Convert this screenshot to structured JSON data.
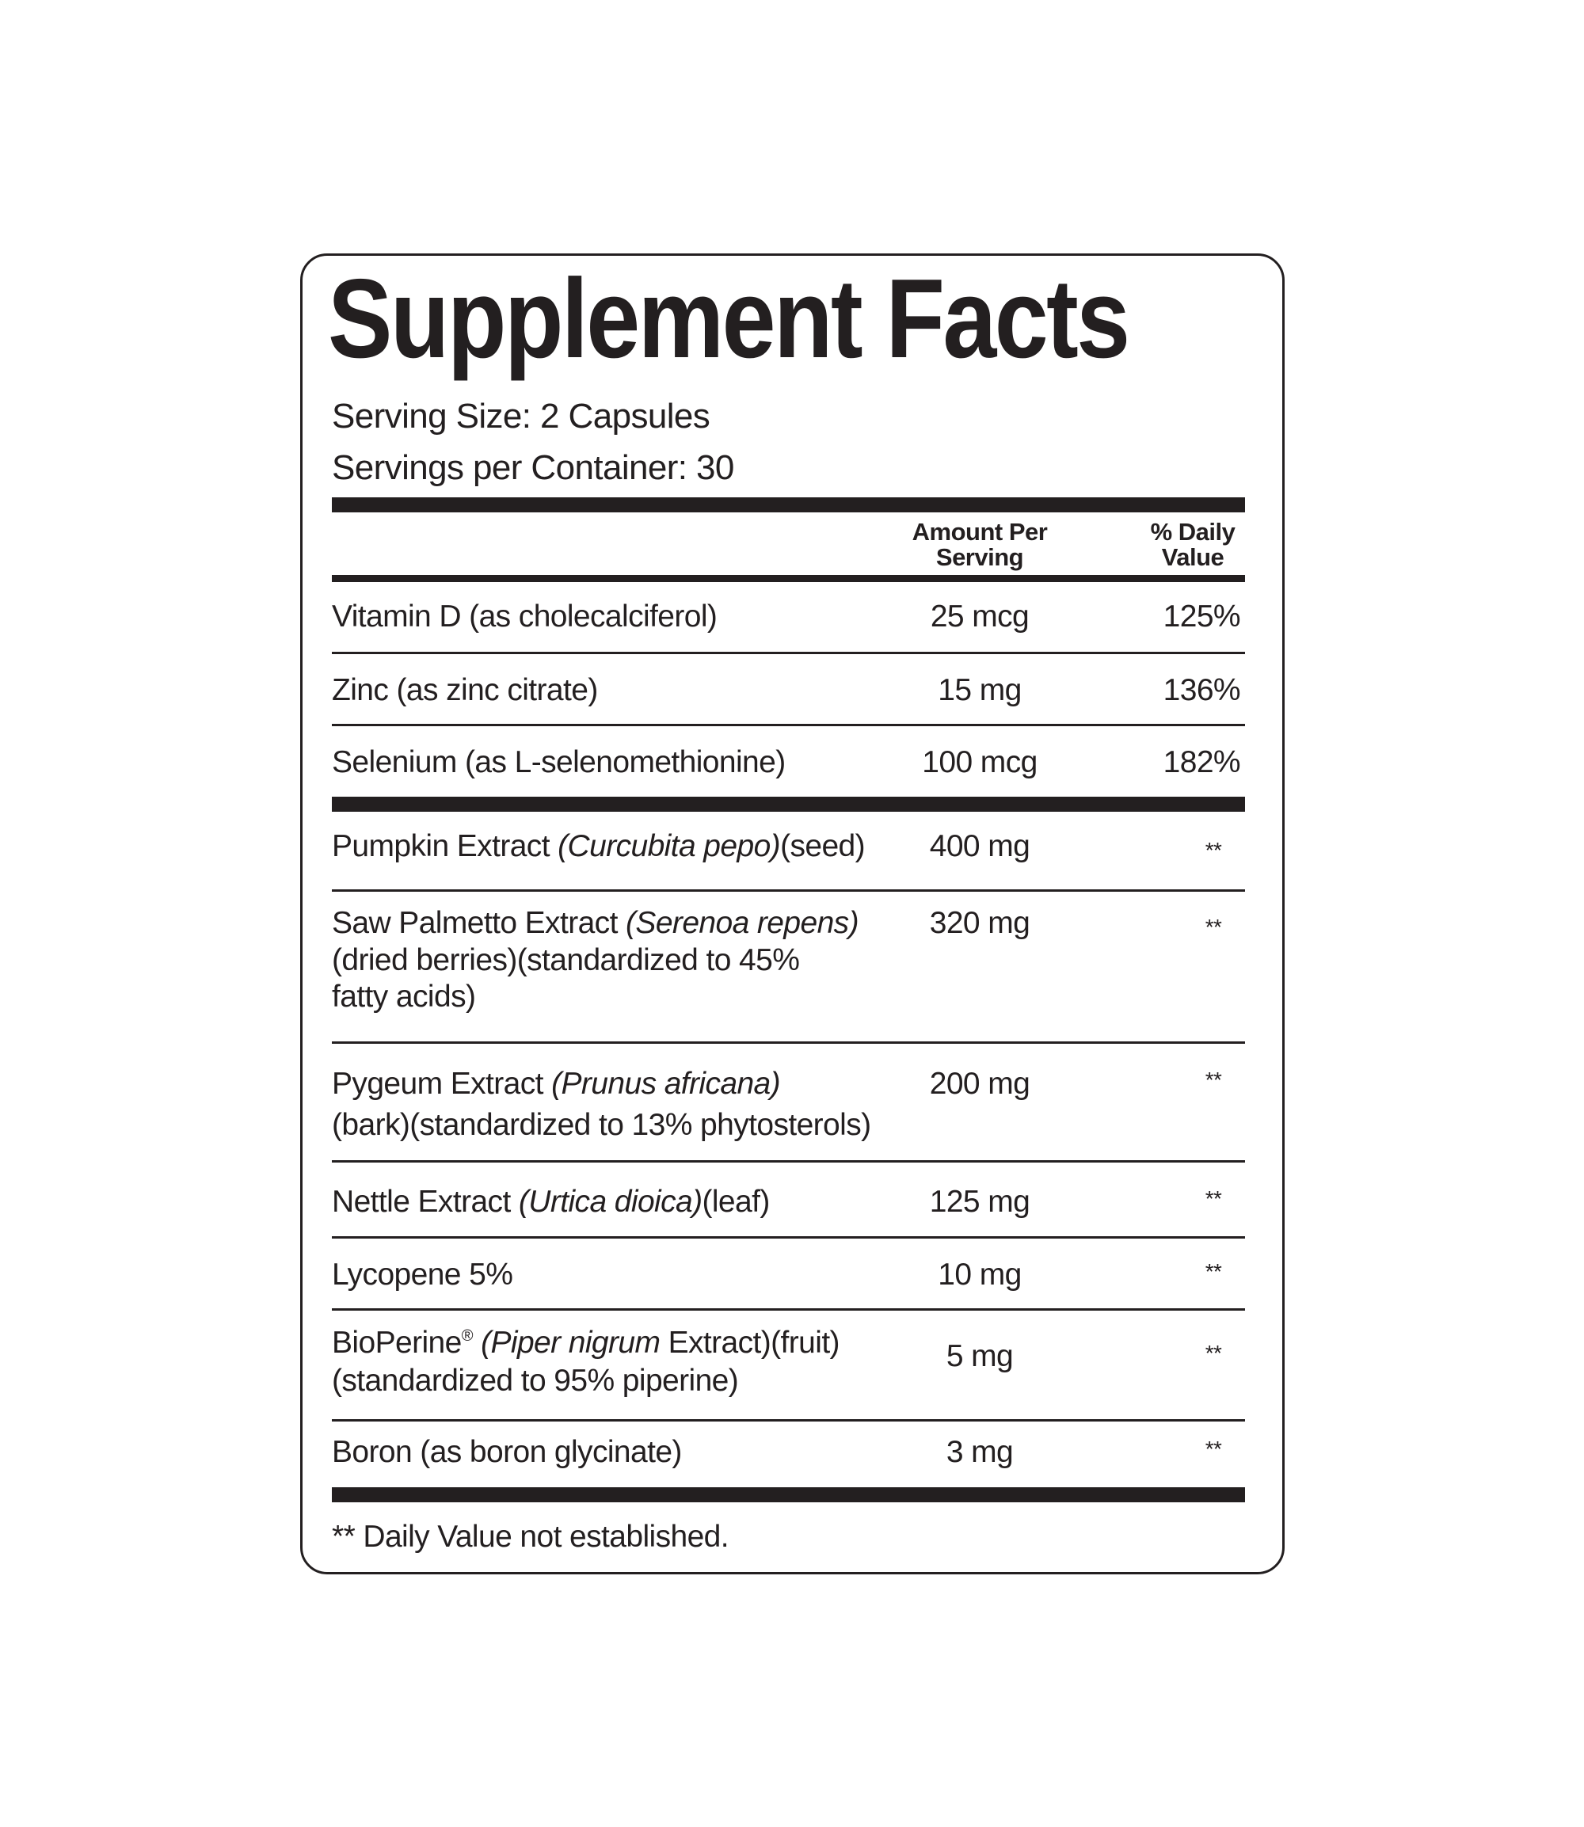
{
  "title": "Supplement Facts",
  "serving_size": "Serving Size: 2 Capsules",
  "servings_per_container": "Servings per Container: 30",
  "header": {
    "amount_line1": "Amount Per",
    "amount_line2": "Serving",
    "dv_line1": "% Daily",
    "dv_line2": "Value"
  },
  "rows": [
    {
      "name": "Vitamin D (as cholecalciferol)",
      "amount": "25 mcg",
      "dv": "125%"
    },
    {
      "name": "Zinc (as zinc citrate)",
      "amount": "15 mg",
      "dv": "136%"
    },
    {
      "name": "Selenium (as L-selenomethionine)",
      "amount": "100 mcg",
      "dv": "182%"
    },
    {
      "name": "Pumpkin Extract ",
      "latin": "(Curcubita pepo)",
      "after": "(seed)",
      "amount": "400 mg",
      "dv": "**"
    },
    {
      "name": "Saw Palmetto Extract ",
      "latin": "(Serenoa repens)",
      "line2": "(dried berries)(standardized to 45%",
      "line3": "fatty acids)",
      "amount": "320 mg",
      "dv": "**"
    },
    {
      "name": "Pygeum Extract ",
      "latin": "(Prunus africana)",
      "line2": "(bark)(standardized to 13% phytosterols)",
      "amount": "200 mg",
      "dv": "**"
    },
    {
      "name": "Nettle Extract ",
      "latin": "(Urtica dioica)",
      "after": "(leaf)",
      "amount": "125 mg",
      "dv": "**"
    },
    {
      "name": "Lycopene 5%",
      "amount": "10 mg",
      "dv": "**"
    },
    {
      "name": "BioPerine",
      "reg": "®",
      "latin": "(Piper nigrum",
      "after": " Extract)(fruit)",
      "line2": "(standardized to 95% piperine)",
      "amount": "5 mg",
      "dv": "**"
    },
    {
      "name": "Boron (as boron glycinate)",
      "amount": "3 mg",
      "dv": "**"
    }
  ],
  "footnote": "** Daily Value not established.",
  "colors": {
    "ink": "#231f20",
    "background": "#ffffff"
  }
}
